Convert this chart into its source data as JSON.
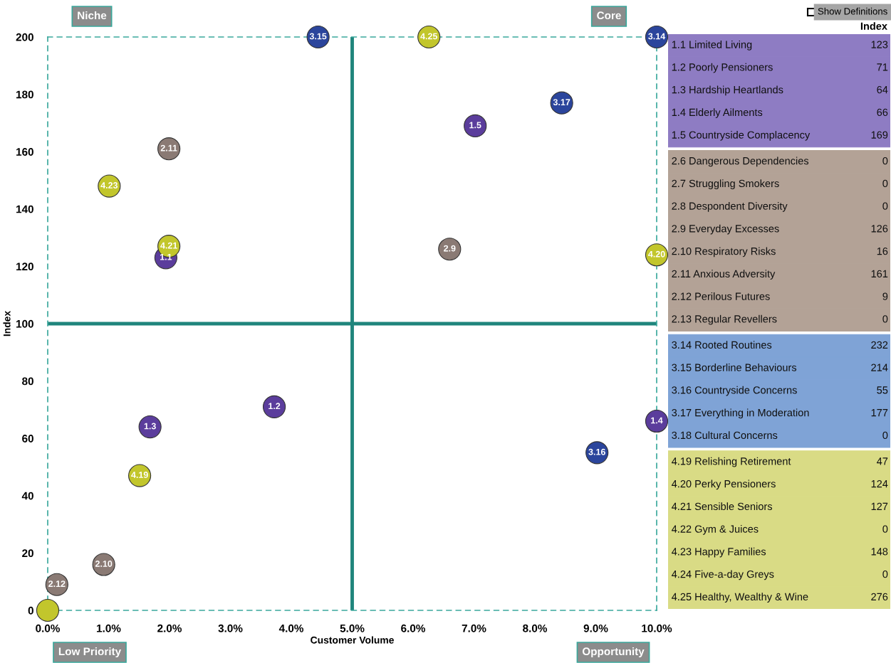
{
  "chart_data": [
    {
      "type": "scatter",
      "xlabel": "Customer Volume",
      "ylabel": "Index",
      "xlim": [
        0,
        10
      ],
      "ylim": [
        0,
        200
      ],
      "xticks": [
        {
          "value": 0,
          "label": "0.0%"
        },
        {
          "value": 1,
          "label": "1.0%"
        },
        {
          "value": 2,
          "label": "2.0%"
        },
        {
          "value": 3,
          "label": "3.0%"
        },
        {
          "value": 4,
          "label": "4.0%"
        },
        {
          "value": 5,
          "label": "5.0%"
        },
        {
          "value": 6,
          "label": "6.0%"
        },
        {
          "value": 7,
          "label": "7.0%"
        },
        {
          "value": 8,
          "label": "8.0%"
        },
        {
          "value": 9,
          "label": "9.0%"
        },
        {
          "value": 10,
          "label": "10.0%"
        }
      ],
      "yticks": [
        0,
        20,
        40,
        60,
        80,
        100,
        120,
        140,
        160,
        180,
        200
      ],
      "grid": false,
      "marker": "circle",
      "ref_lines": [
        {
          "axis": "x",
          "value": 5,
          "color": "#1f857c"
        },
        {
          "axis": "y",
          "value": 100,
          "color": "#1f857c"
        }
      ],
      "annotations": [
        "Niche",
        "Core",
        "Low Priority",
        "Opportunity",
        {
          "text": "1.1",
          "x": 1.94,
          "y": 123
        },
        {
          "text": "1.2",
          "x": 3.72,
          "y": 71
        },
        {
          "text": "1.3",
          "x": 1.68,
          "y": 64
        },
        {
          "text": "1.4",
          "x": 10.0,
          "y": 66
        },
        {
          "text": "1.5",
          "x": 7.02,
          "y": 169
        },
        {
          "text": "2.9",
          "x": 6.6,
          "y": 126
        },
        {
          "text": "2.10",
          "x": 0.92,
          "y": 16
        },
        {
          "text": "2.11",
          "x": 1.99,
          "y": 161
        },
        {
          "text": "2.12",
          "x": 0.15,
          "y": 9
        },
        {
          "text": "3.14",
          "x": 10.0,
          "y": 200
        },
        {
          "text": "3.15",
          "x": 4.44,
          "y": 200
        },
        {
          "text": "3.16",
          "x": 9.02,
          "y": 55
        },
        {
          "text": "3.17",
          "x": 8.44,
          "y": 177
        },
        {
          "text": "4.19",
          "x": 1.51,
          "y": 47
        },
        {
          "text": "4.20",
          "x": 10.0,
          "y": 124
        },
        {
          "text": "4.21",
          "x": 1.99,
          "y": 127
        },
        {
          "text": "4.23",
          "x": 1.01,
          "y": 148
        },
        {
          "text": "4.25",
          "x": 6.26,
          "y": 200
        }
      ],
      "series": [
        {
          "color": "#5b3d9c",
          "x": [
            1.94,
            3.72,
            1.68,
            10.0,
            7.02
          ],
          "values": [
            123,
            71,
            64,
            66,
            169
          ]
        },
        {
          "color": "#8a7a74",
          "x": [
            6.6,
            0.92,
            1.99,
            0.15
          ],
          "values": [
            126,
            16,
            161,
            9
          ]
        },
        {
          "color": "#2b459c",
          "x": [
            10.0,
            4.44,
            9.02,
            8.44
          ],
          "values": [
            200,
            200,
            55,
            177
          ]
        },
        {
          "color": "#c2c62c",
          "x": [
            0.0,
            1.51,
            10.0,
            1.99,
            1.01,
            6.26
          ],
          "values": [
            0,
            47,
            124,
            127,
            148,
            200
          ]
        }
      ]
    },
    {
      "type": "other",
      "title": "Index",
      "annotations": [
        "Show Definitions"
      ],
      "data_labels": true,
      "categories": [
        "1.1 Limited Living",
        "1.2 Poorly Pensioners",
        "1.3 Hardship Heartlands",
        "1.4 Elderly Ailments",
        "1.5 Countryside Complacency",
        "2.6 Dangerous Dependencies",
        "2.7 Struggling Smokers",
        "2.8 Despondent Diversity",
        "2.9 Everyday Excesses",
        "2.10 Respiratory Risks",
        "2.11 Anxious Adversity",
        "2.12 Perilous Futures",
        "2.13 Regular Revellers",
        "3.14 Rooted Routines",
        "3.15 Borderline Behaviours",
        "3.16 Countryside Concerns",
        "3.17 Everything in Moderation",
        "3.18 Cultural Concerns",
        "4.19 Relishing Retirement",
        "4.20 Perky Pensioners",
        "4.21 Sensible Seniors",
        "4.22 Gym & Juices",
        "4.23 Happy Families",
        "4.24 Five-a-day Greys",
        "4.25 Healthy, Wealthy & Wine"
      ],
      "values": [
        123,
        71,
        64,
        66,
        169,
        0,
        0,
        0,
        126,
        16,
        161,
        9,
        0,
        232,
        214,
        55,
        177,
        0,
        47,
        124,
        127,
        0,
        148,
        0,
        276
      ],
      "colors": [
        "#8e7cc3",
        "#8e7cc3",
        "#8e7cc3",
        "#8e7cc3",
        "#8e7cc3",
        "#b3a296",
        "#b3a296",
        "#b3a296",
        "#b3a296",
        "#b3a296",
        "#b3a296",
        "#b3a296",
        "#b3a296",
        "#7fa3d6",
        "#7fa3d6",
        "#7fa3d6",
        "#7fa3d6",
        "#7fa3d6",
        "#d9db85",
        "#d9db85",
        "#d9db85",
        "#d9db85",
        "#d9db85",
        "#d9db85",
        "#d9db85"
      ]
    }
  ]
}
